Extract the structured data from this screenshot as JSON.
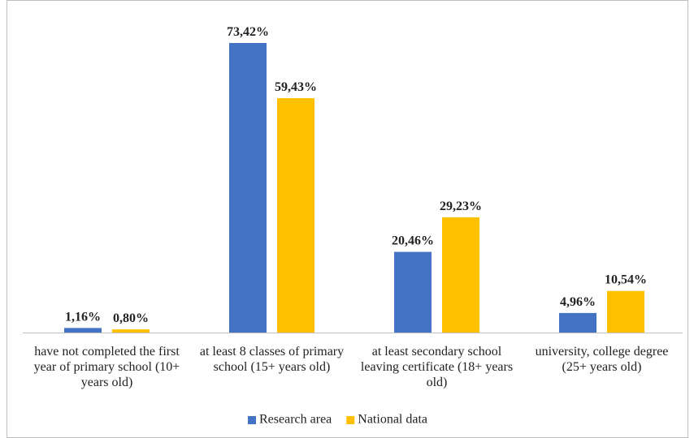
{
  "chart_data": {
    "type": "bar",
    "categories": [
      "have not completed the first year of primary school (10+ years old)",
      "at least 8 classes of primary school (15+ years old)",
      "at least secondary school leaving certificate (18+ years old)",
      "university, college degree (25+ years old)"
    ],
    "series": [
      {
        "name": "Research area",
        "color": "#4472c4",
        "values": [
          1.16,
          73.42,
          20.46,
          4.96
        ],
        "value_labels": [
          "1,16%",
          "73,42%",
          "20,46%",
          "4,96%"
        ]
      },
      {
        "name": "National data",
        "color": "#ffc000",
        "values": [
          0.8,
          59.43,
          29.23,
          10.54
        ],
        "value_labels": [
          "0,80%",
          "59,43%",
          "29,23%",
          "10,54%"
        ]
      }
    ],
    "legend": "bottom"
  }
}
